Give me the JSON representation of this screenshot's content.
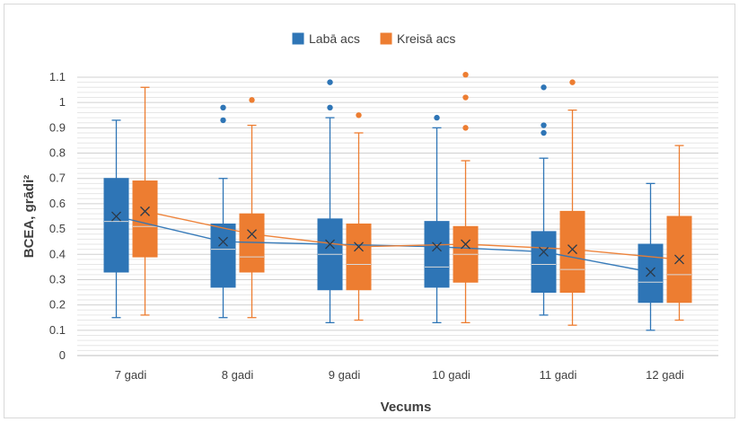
{
  "chart_data": {
    "type": "box",
    "title": "",
    "xlabel": "Vecums",
    "ylabel": "BCEA, grādi²",
    "ylim": [
      0,
      1.1
    ],
    "yticks": [
      "0",
      "0.1",
      "0.2",
      "0.3",
      "0.4",
      "0.5",
      "0.6",
      "0.7",
      "0.8",
      "0.9",
      "1",
      "1.1"
    ],
    "minor_gridlines": true,
    "legend_position": "top-center",
    "categories": [
      "7 gadi",
      "8 gadi",
      "9 gadi",
      "10 gadi",
      "11 gadi",
      "12 gadi"
    ],
    "series": [
      {
        "name": "Labā acs",
        "color": "#2e75b6",
        "stats": [
          {
            "min": 0.15,
            "q1": 0.33,
            "median": 0.53,
            "q3": 0.7,
            "max": 0.93,
            "mean": 0.55,
            "outliers": []
          },
          {
            "min": 0.15,
            "q1": 0.27,
            "median": 0.42,
            "q3": 0.52,
            "max": 0.7,
            "mean": 0.45,
            "outliers": [
              0.93,
              0.98
            ]
          },
          {
            "min": 0.13,
            "q1": 0.26,
            "median": 0.4,
            "q3": 0.54,
            "max": 0.94,
            "mean": 0.44,
            "outliers": [
              0.98,
              1.08
            ]
          },
          {
            "min": 0.13,
            "q1": 0.27,
            "median": 0.35,
            "q3": 0.53,
            "max": 0.9,
            "mean": 0.43,
            "outliers": [
              0.94
            ]
          },
          {
            "min": 0.16,
            "q1": 0.25,
            "median": 0.36,
            "q3": 0.49,
            "max": 0.78,
            "mean": 0.41,
            "outliers": [
              0.88,
              0.91,
              1.06
            ]
          },
          {
            "min": 0.1,
            "q1": 0.21,
            "median": 0.29,
            "q3": 0.44,
            "max": 0.68,
            "mean": 0.33,
            "outliers": []
          }
        ]
      },
      {
        "name": "Kreisā acs",
        "color": "#ed7d31",
        "stats": [
          {
            "min": 0.16,
            "q1": 0.39,
            "median": 0.51,
            "q3": 0.69,
            "max": 1.06,
            "mean": 0.57,
            "outliers": []
          },
          {
            "min": 0.15,
            "q1": 0.33,
            "median": 0.39,
            "q3": 0.56,
            "max": 0.91,
            "mean": 0.48,
            "outliers": [
              1.01
            ]
          },
          {
            "min": 0.14,
            "q1": 0.26,
            "median": 0.36,
            "q3": 0.52,
            "max": 0.88,
            "mean": 0.43,
            "outliers": [
              0.95
            ]
          },
          {
            "min": 0.13,
            "q1": 0.29,
            "median": 0.4,
            "q3": 0.51,
            "max": 0.77,
            "mean": 0.44,
            "outliers": [
              0.9,
              1.02,
              1.11
            ]
          },
          {
            "min": 0.12,
            "q1": 0.25,
            "median": 0.34,
            "q3": 0.57,
            "max": 0.97,
            "mean": 0.42,
            "outliers": [
              1.08
            ]
          },
          {
            "min": 0.14,
            "q1": 0.21,
            "median": 0.32,
            "q3": 0.55,
            "max": 0.83,
            "mean": 0.38,
            "outliers": []
          }
        ]
      }
    ]
  }
}
